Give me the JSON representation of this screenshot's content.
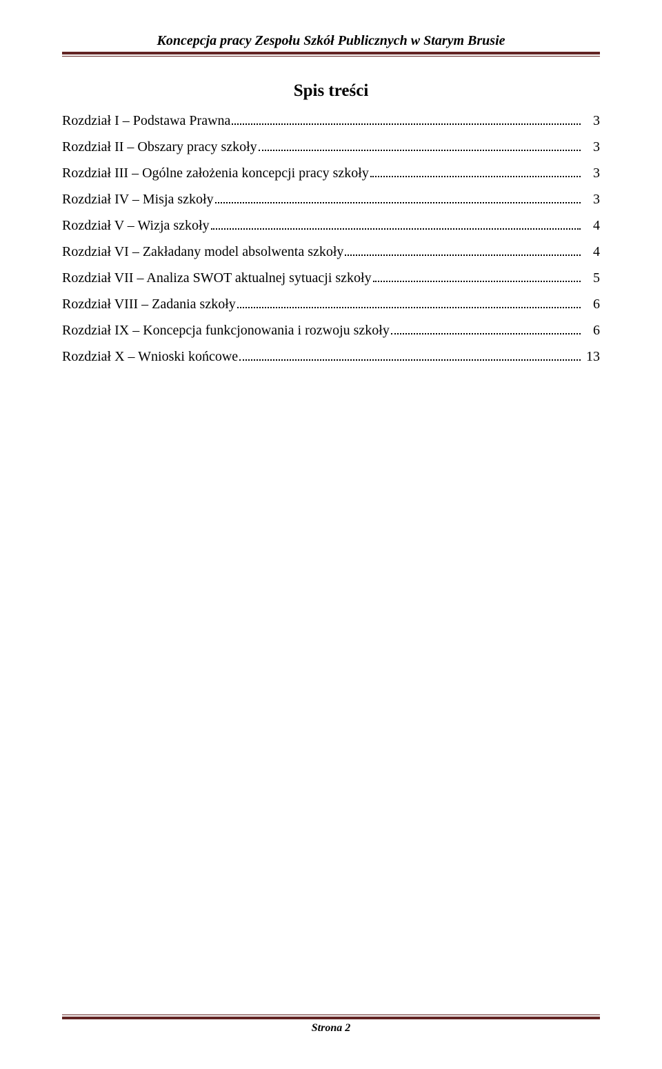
{
  "header": {
    "title": "Koncepcja pracy Zespołu Szkół Publicznych w Starym Brusie",
    "rule_color": "#622423"
  },
  "toc": {
    "title": "Spis treści",
    "items": [
      {
        "label": "Rozdział I – Podstawa Prawna",
        "page": "3"
      },
      {
        "label": "Rozdział II – Obszary pracy szkoły",
        "page": "3"
      },
      {
        "label": "Rozdział III – Ogólne założenia koncepcji pracy szkoły",
        "page": "3"
      },
      {
        "label": "Rozdział IV – Misja szkoły",
        "page": "3"
      },
      {
        "label": "Rozdział V – Wizja szkoły",
        "page": "4"
      },
      {
        "label": "Rozdział VI – Zakładany model absolwenta szkoły",
        "page": "4"
      },
      {
        "label": "Rozdział VII – Analiza SWOT aktualnej sytuacji szkoły",
        "page": "5"
      },
      {
        "label": "Rozdział VIII – Zadania szkoły",
        "page": "6"
      },
      {
        "label": "Rozdział IX – Koncepcja funkcjonowania i rozwoju szkoły",
        "page": "6"
      },
      {
        "label": "Rozdział X – Wnioski końcowe",
        "page": "13"
      }
    ]
  },
  "footer": {
    "text": "Strona 2",
    "rule_color": "#622423"
  },
  "style": {
    "background_color": "#ffffff",
    "text_color": "#000000",
    "header_fontsize": 20,
    "toc_title_fontsize": 25,
    "toc_item_fontsize": 20,
    "footer_fontsize": 16
  }
}
